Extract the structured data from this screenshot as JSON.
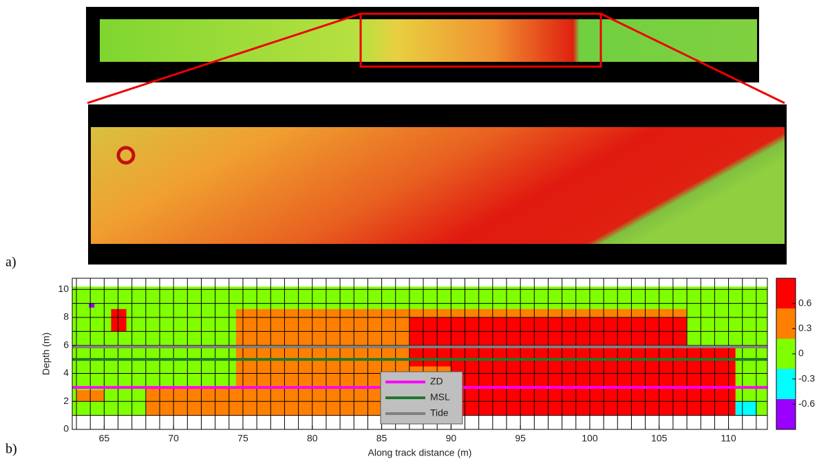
{
  "panel_labels": [
    "a)",
    "b)"
  ],
  "chart_data": {
    "type": "heatmap",
    "x_label": "Along track distance (m)",
    "y_label": "Depth (m)",
    "xlim": [
      62.7,
      112.8
    ],
    "xticks": [
      65,
      70,
      75,
      80,
      85,
      90,
      95,
      100,
      105,
      110
    ],
    "ylim": [
      0,
      10.8
    ],
    "yticks": [
      0,
      2,
      4,
      6,
      8,
      10
    ],
    "grid": true,
    "grid_spacing": 1,
    "clim": [
      -0.9,
      0.9
    ],
    "cticks": [
      -0.6,
      -0.3,
      0,
      0.3,
      0.6
    ],
    "colors": [
      "#9900ff",
      "#00ffff",
      "#80ff00",
      "#ff8000",
      "#ff0000"
    ],
    "regions": [
      {
        "x": [
          62.7,
          112.8
        ],
        "y": [
          1,
          10.2
        ],
        "value": 0
      },
      {
        "x": [
          74.5,
          107
        ],
        "y": [
          2.5,
          8.6
        ],
        "value": 0.3
      },
      {
        "x": [
          68,
          110.5
        ],
        "y": [
          1,
          3
        ],
        "value": 0.3
      },
      {
        "x": [
          63,
          65
        ],
        "y": [
          2,
          2.8
        ],
        "value": 0.3
      },
      {
        "x": [
          87,
          107
        ],
        "y": [
          4.5,
          8
        ],
        "value": 0.6
      },
      {
        "x": [
          90,
          110.5
        ],
        "y": [
          1,
          6
        ],
        "value": 0.6
      },
      {
        "x": [
          65.5,
          66.6
        ],
        "y": [
          7,
          8.6
        ],
        "value": 0.6
      },
      {
        "x": [
          110.5,
          112
        ],
        "y": [
          1,
          2
        ],
        "value": -0.3
      },
      {
        "x": [
          63.9,
          64.3
        ],
        "y": [
          8.7,
          9
        ],
        "value": -0.6
      }
    ],
    "lines": [
      {
        "name": "ZD",
        "color": "#ff00ff",
        "y": 3.0
      },
      {
        "name": "MSL",
        "color": "#1f7a2e",
        "y": 5.0
      },
      {
        "name": "Tide",
        "color": "#808080",
        "y": 5.9
      }
    ]
  }
}
